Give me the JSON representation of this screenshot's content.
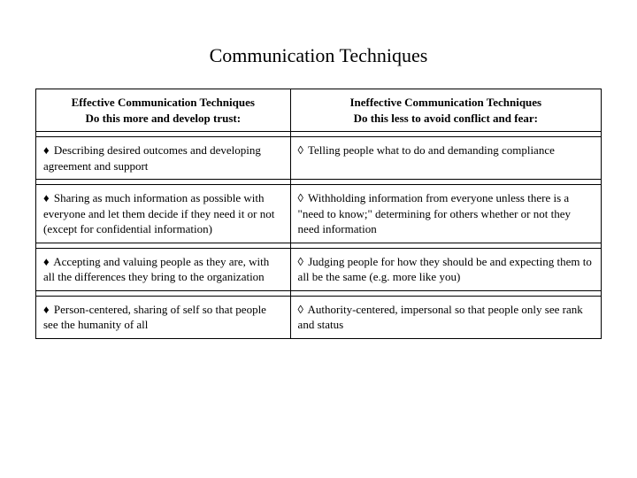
{
  "title": "Communication Techniques",
  "table": {
    "header": {
      "left_line1": "Effective Communication Techniques",
      "left_line2": "Do this more and develop trust:",
      "right_line1": "Ineffective Communication Techniques",
      "right_line2": "Do this less to avoid conflict and fear:"
    },
    "bullets": {
      "filled": "♦",
      "hollow": "◊"
    },
    "rows": [
      {
        "left": "Describing desired outcomes and developing agreement and support",
        "right": "Telling people what to do and demanding compliance"
      },
      {
        "left": "Sharing as much information as possible with everyone and let them decide if they need it or not (except for confidential information)",
        "right": "Withholding information from everyone unless there is a \"need to know;\" determining for others whether or not they need information"
      },
      {
        "left": "Accepting and valuing people as they are, with all the differences they bring to the organization",
        "right": "Judging people for how they should be and expecting them to all be the same (e.g. more like you)"
      },
      {
        "left": "Person-centered, sharing of self so that people see the humanity of all",
        "right": "Authority-centered, impersonal so that people only see rank and status"
      }
    ]
  }
}
